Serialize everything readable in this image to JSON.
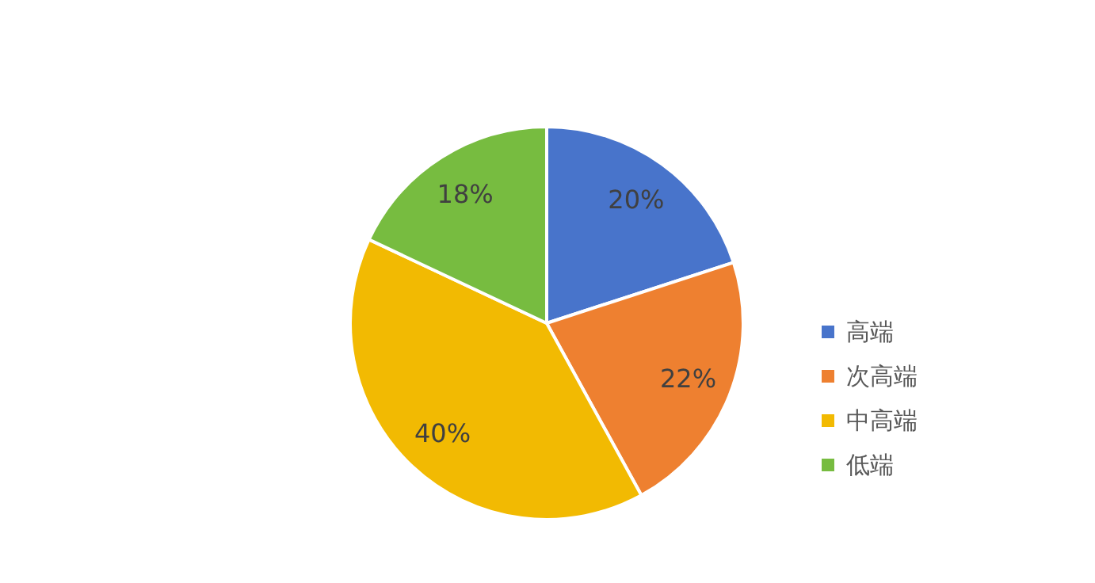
{
  "chart_data": {
    "type": "pie",
    "categories": [
      "高端",
      "次高端",
      "中高端",
      "低端"
    ],
    "values": [
      20,
      22,
      40,
      18
    ],
    "colors": [
      "#4874cb",
      "#ee8030",
      "#f2ba02",
      "#77bc40"
    ],
    "value_labels": [
      "20%",
      "22%",
      "40%",
      "18%"
    ],
    "legend": "right"
  }
}
